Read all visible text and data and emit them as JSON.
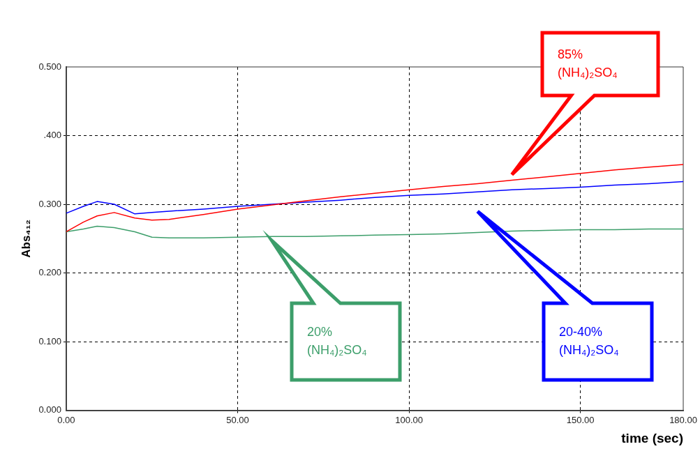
{
  "chart_data": {
    "type": "line",
    "xlabel": "time (sec)",
    "ylabel": "Abs₄₁₂",
    "x": [
      0,
      5,
      9,
      14,
      20,
      25,
      30,
      40,
      50,
      60,
      70,
      80,
      90,
      100,
      110,
      120,
      130,
      140,
      150,
      160,
      170,
      180
    ],
    "series": [
      {
        "name": "85% (NH₄)₂SO₄",
        "color": "#ff0000",
        "values": [
          0.26,
          0.274,
          0.283,
          0.288,
          0.28,
          0.277,
          0.278,
          0.285,
          0.293,
          0.299,
          0.305,
          0.311,
          0.316,
          0.321,
          0.326,
          0.33,
          0.335,
          0.34,
          0.345,
          0.35,
          0.354,
          0.358
        ]
      },
      {
        "name": "20-40% (NH₄)₂SO₄",
        "color": "#0000ff",
        "values": [
          0.287,
          0.297,
          0.304,
          0.3,
          0.286,
          0.288,
          0.29,
          0.293,
          0.297,
          0.3,
          0.303,
          0.306,
          0.31,
          0.313,
          0.315,
          0.318,
          0.321,
          0.323,
          0.325,
          0.328,
          0.33,
          0.333
        ]
      },
      {
        "name": "20% (NH₄)₂SO₄",
        "color": "#3c9e6a",
        "values": [
          0.26,
          0.264,
          0.268,
          0.266,
          0.26,
          0.252,
          0.251,
          0.251,
          0.252,
          0.253,
          0.253,
          0.254,
          0.255,
          0.256,
          0.257,
          0.259,
          0.261,
          0.262,
          0.263,
          0.263,
          0.264,
          0.264
        ]
      }
    ],
    "xlim": [
      0,
      180
    ],
    "xticks": [
      {
        "value": 0,
        "label": "0.00"
      },
      {
        "value": 50,
        "label": "50.00"
      },
      {
        "value": 100,
        "label": "100.00"
      },
      {
        "value": 150,
        "label": "150.00"
      },
      {
        "value": 180,
        "label": "180.00"
      }
    ],
    "ylim": [
      0,
      0.5
    ],
    "yticks": [
      {
        "value": 0,
        "label": "0.000"
      },
      {
        "value": 0.1,
        "label": "0.100"
      },
      {
        "value": 0.2,
        "label": "0.200"
      },
      {
        "value": 0.3,
        "label": "0.300"
      },
      {
        "value": 0.4,
        "label": ".400"
      },
      {
        "value": 0.5,
        "label": "0.500"
      }
    ],
    "grid": true,
    "legend": false,
    "marker": "none",
    "line_style": "solid"
  }
}
